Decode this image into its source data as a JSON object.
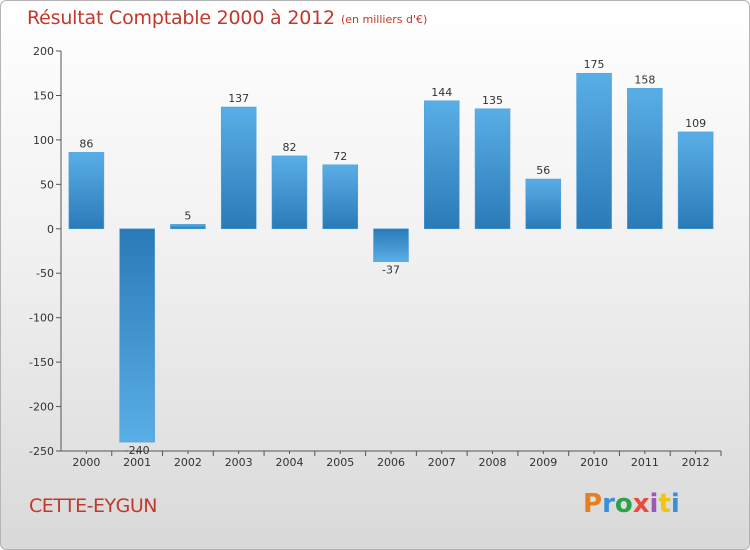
{
  "header": {
    "title": "Résultat Comptable 2000 à 2012",
    "subtitle": "(en milliers d'€)"
  },
  "footer": {
    "place": "CETTE-EYGUN",
    "logo_letters": [
      "P",
      "r",
      "o",
      "x",
      "i",
      "t",
      "i"
    ]
  },
  "colors": {
    "title": "#c0392b",
    "bar_top": "#5aaee6",
    "bar_bottom": "#2a7ab8"
  },
  "chart_data": {
    "type": "bar",
    "categories": [
      "2000",
      "2001",
      "2002",
      "2003",
      "2004",
      "2005",
      "2006",
      "2007",
      "2008",
      "2009",
      "2010",
      "2011",
      "2012"
    ],
    "values": [
      86,
      -240,
      5,
      137,
      82,
      72,
      -37,
      144,
      135,
      56,
      175,
      158,
      109
    ],
    "data_labels": [
      "86",
      "-240",
      "5",
      "137",
      "82",
      "72",
      "-37",
      "144",
      "135",
      "56",
      "175",
      "158",
      "109"
    ],
    "yticks": [
      200,
      150,
      100,
      50,
      0,
      -50,
      -100,
      -150,
      -200,
      -250
    ],
    "ytick_labels": [
      "200",
      "150",
      "100",
      "50",
      "0",
      "-50",
      "-100",
      "-150",
      "-200",
      "-250"
    ],
    "ylim": [
      -250,
      200
    ],
    "grid": false,
    "legend": "none"
  }
}
